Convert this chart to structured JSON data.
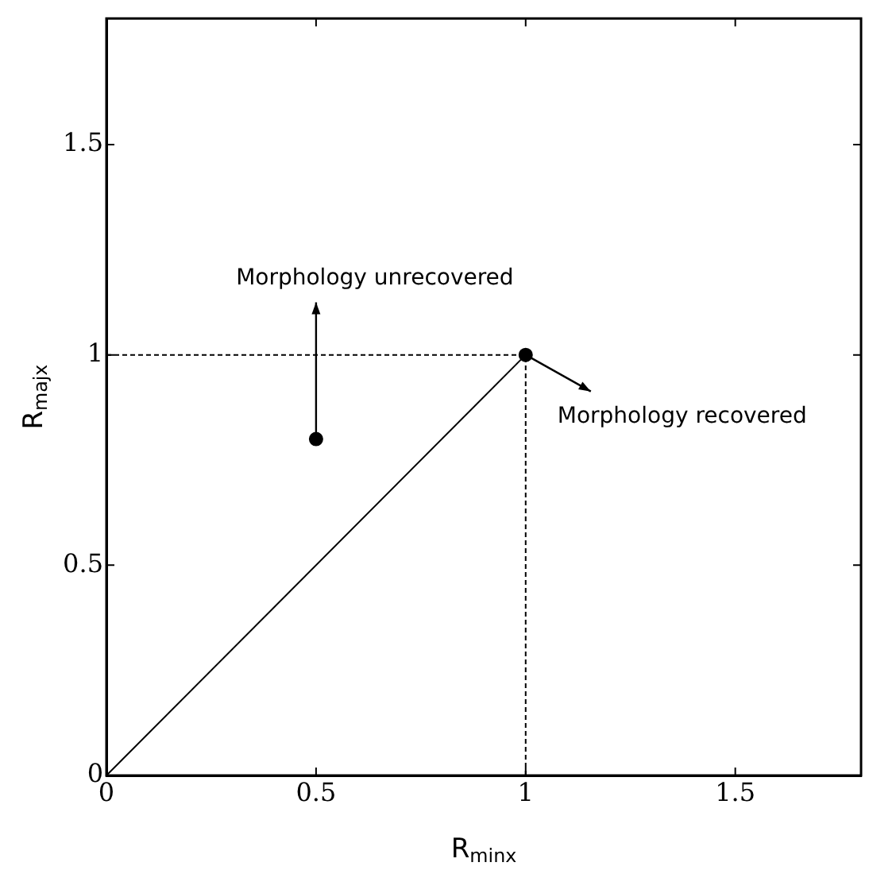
{
  "chart_data": {
    "type": "scatter",
    "xlabel": "R$_{minx}$",
    "ylabel": "R$_{majx}$",
    "xlim": [
      0,
      1.8
    ],
    "ylim": [
      0,
      1.8
    ],
    "xticks": [
      0,
      0.5,
      1,
      1.5
    ],
    "yticks": [
      0,
      0.5,
      1,
      1.5
    ],
    "grid": false,
    "legend": false,
    "series": [
      {
        "type": "line",
        "x": [
          0,
          1
        ],
        "values": [
          0,
          1
        ],
        "color": "#000000",
        "line_style": "solid",
        "marker": "none"
      },
      {
        "type": "line",
        "x": [
          0,
          1
        ],
        "values": [
          1,
          1
        ],
        "color": "#000000",
        "line_style": "dashed",
        "marker": "none"
      },
      {
        "type": "line",
        "x": [
          1,
          1
        ],
        "values": [
          0,
          1
        ],
        "color": "#000000",
        "line_style": "dashed",
        "marker": "none"
      },
      {
        "type": "scatter",
        "x": [
          0.5,
          1
        ],
        "values": [
          0.8,
          1
        ],
        "color": "#000000",
        "marker": "circle"
      }
    ],
    "annotations": [
      {
        "text": "Morphology unrecovered",
        "x": 0.5,
        "y": 0.8
      },
      {
        "text": "Morphology recovered",
        "x": 1,
        "y": 1
      }
    ]
  }
}
